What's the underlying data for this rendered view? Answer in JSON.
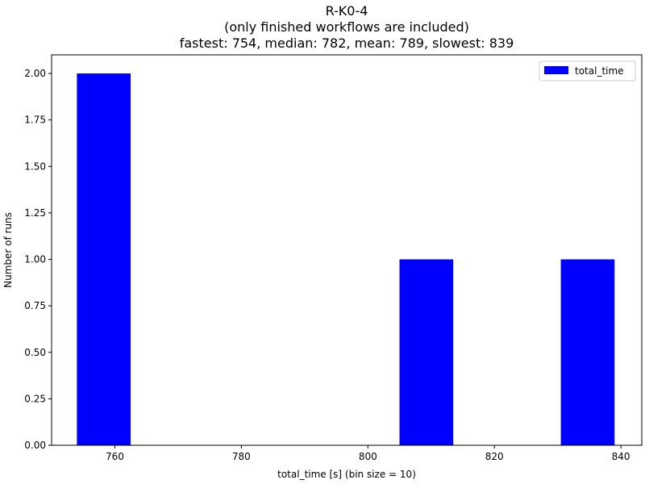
{
  "chart_data": {
    "type": "bar",
    "title_lines": [
      "R-K0-4",
      "(only finished workflows are included)",
      "fastest: 754, median: 782, mean: 789, slowest: 839"
    ],
    "xlabel": "total_time [s] (bin size = 10)",
    "ylabel": "Number of runs",
    "xlim": [
      750,
      843.3
    ],
    "ylim": [
      0,
      2.1
    ],
    "x_ticks": [
      760,
      780,
      800,
      820,
      840
    ],
    "y_ticks": [
      0,
      0.25,
      0.5,
      0.75,
      1.0,
      1.25,
      1.5,
      1.75,
      2.0
    ],
    "y_tick_labels": [
      "0.00",
      "0.25",
      "0.50",
      "0.75",
      "1.00",
      "1.25",
      "1.50",
      "1.75",
      "2.00"
    ],
    "bar_color": "#0000ff",
    "legend_position": "top-right",
    "series": [
      {
        "name": "total_time",
        "bins": [
          {
            "start": 754,
            "end": 762.5,
            "value": 2
          },
          {
            "start": 805,
            "end": 813.5,
            "value": 1
          },
          {
            "start": 830.5,
            "end": 839,
            "value": 1
          }
        ]
      }
    ]
  }
}
